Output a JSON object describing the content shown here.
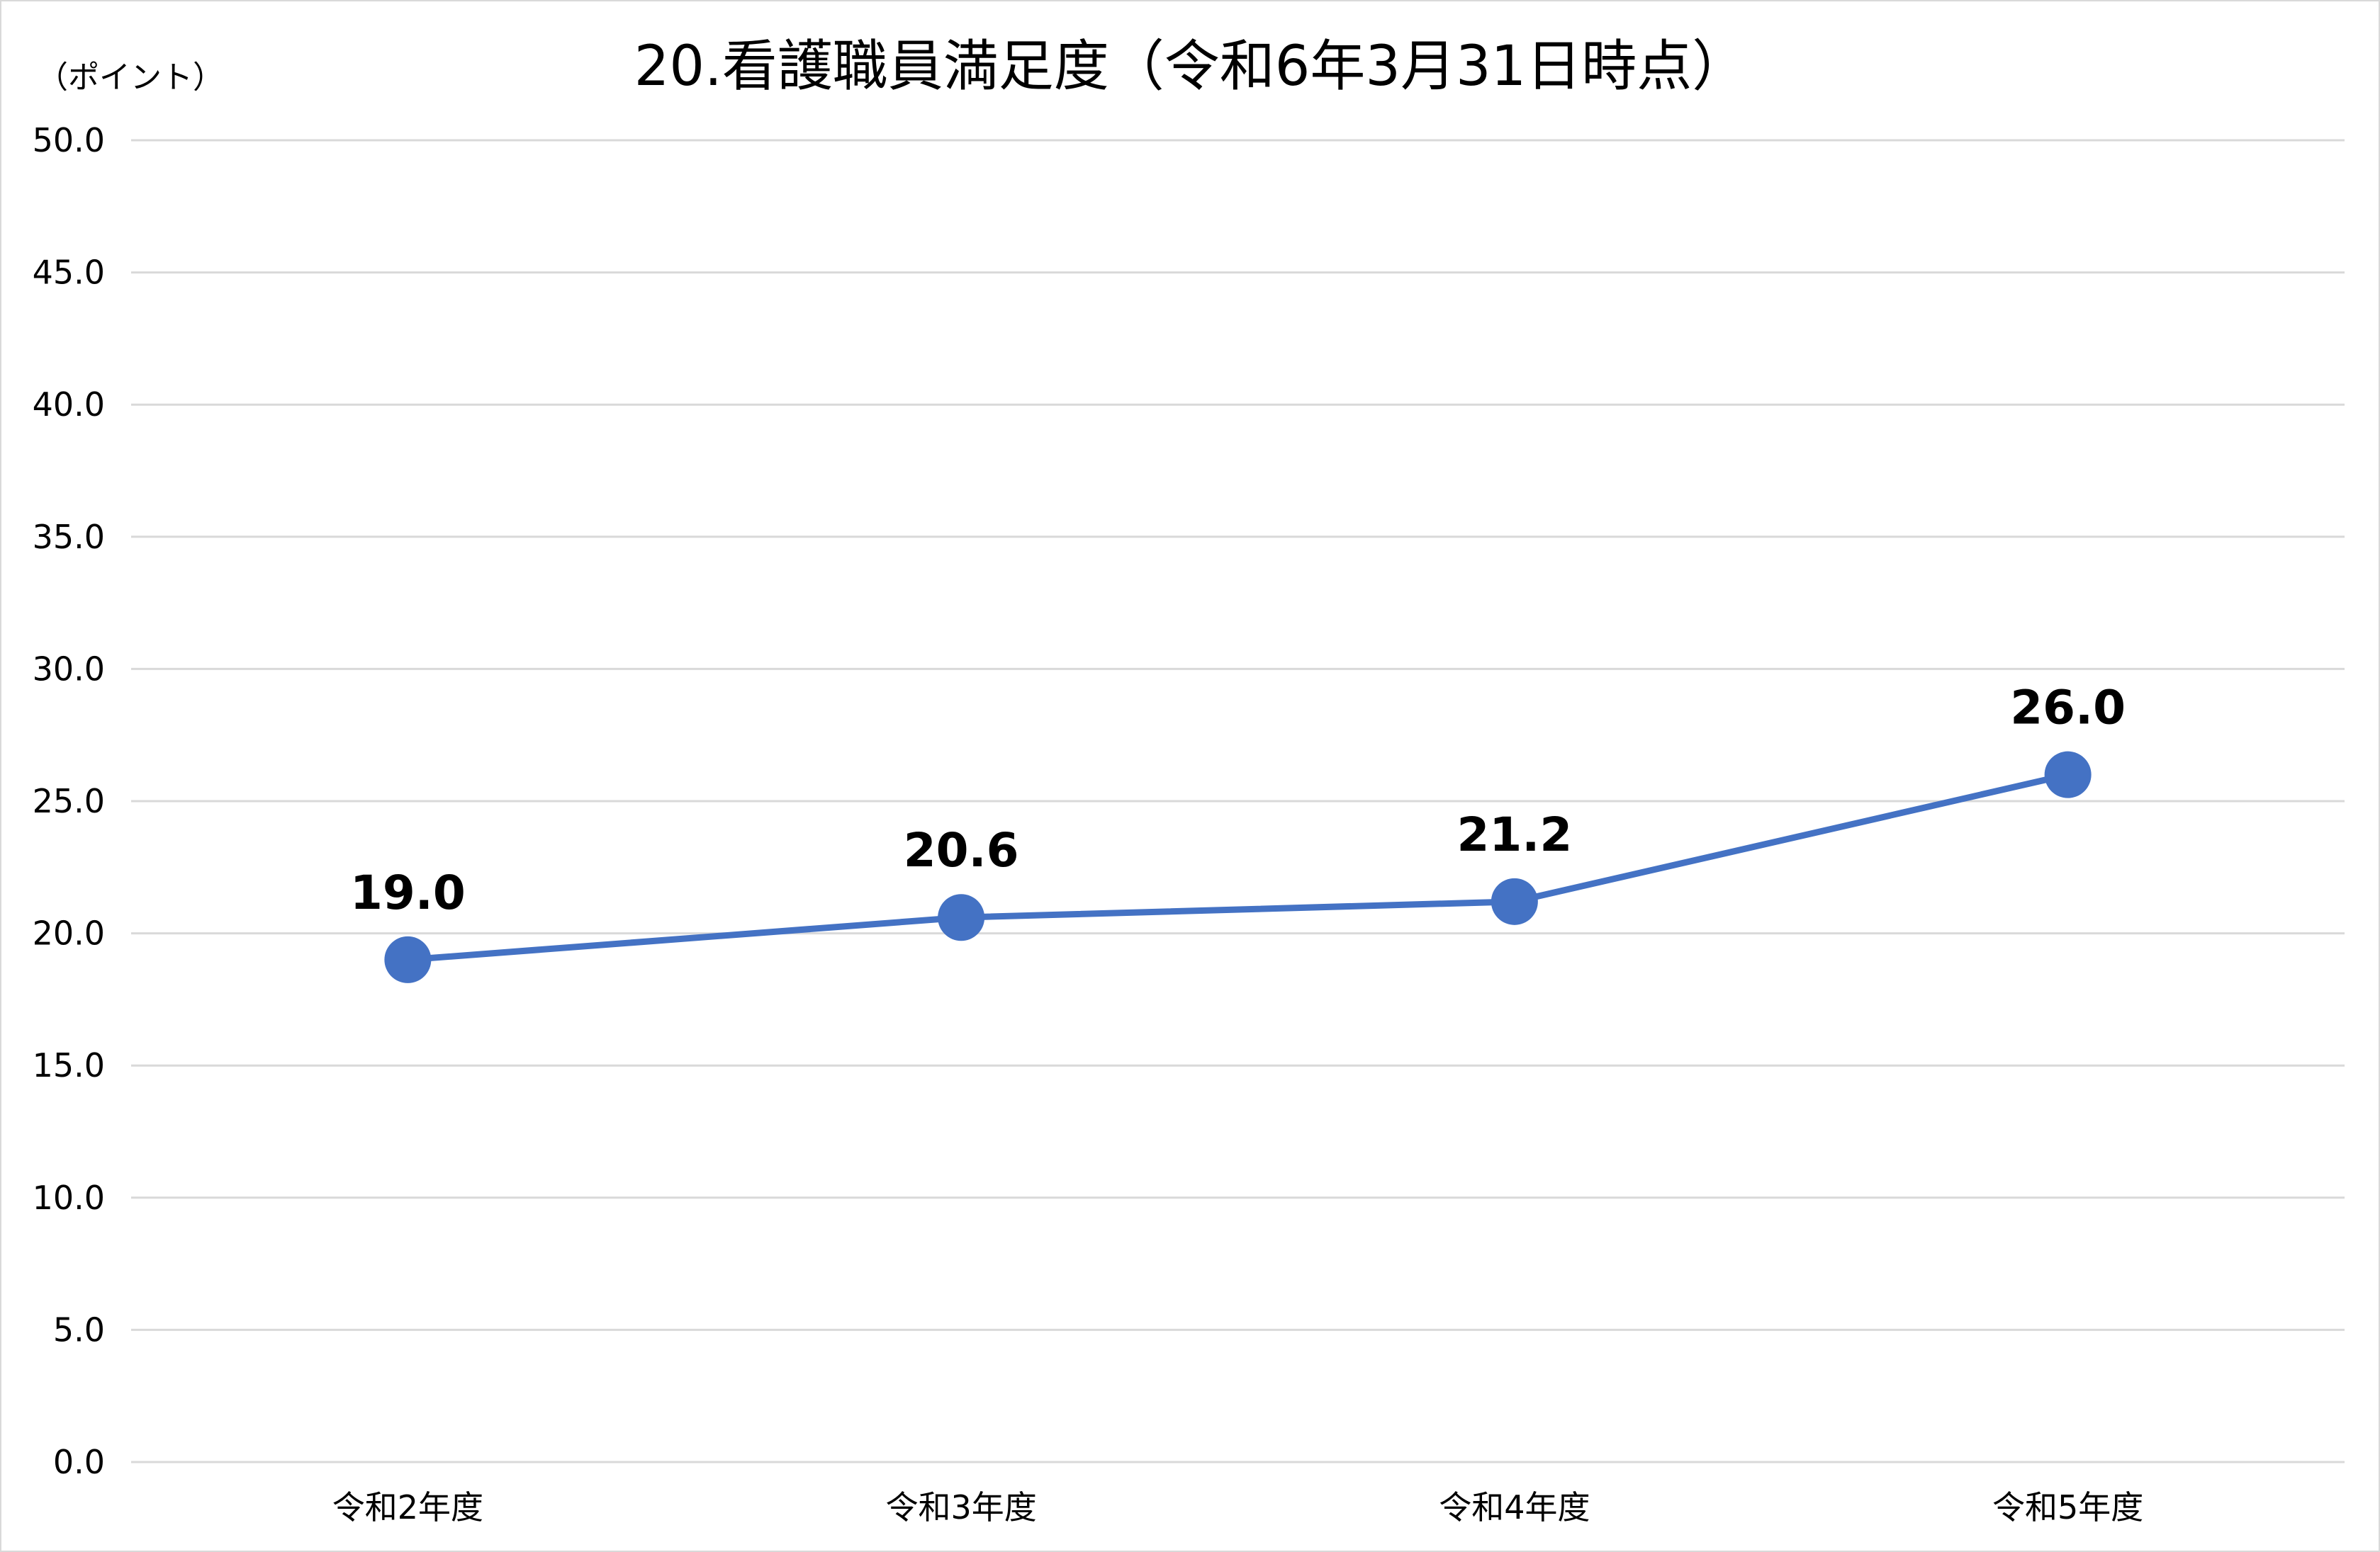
{
  "chart_data": {
    "type": "line",
    "title": "20.看護職員満足度（令和6年3月31日時点）",
    "ylabel": "（ポイント）",
    "xlabel": "",
    "categories": [
      "令和2年度",
      "令和3年度",
      "令和4年度",
      "令和5年度"
    ],
    "series": [
      {
        "values": [
          19.0,
          20.6,
          21.2,
          26.0
        ]
      }
    ],
    "data_labels": [
      "19.0",
      "20.6",
      "21.2",
      "26.0"
    ],
    "ylim": [
      0,
      50
    ],
    "ytick_step": 5,
    "ytick_labels": [
      "0.0",
      "5.0",
      "10.0",
      "15.0",
      "20.0",
      "25.0",
      "30.0",
      "35.0",
      "40.0",
      "45.0",
      "50.0"
    ],
    "grid": true,
    "legend": "none",
    "line_color": "#4472c4",
    "marker_color": "#4472c4",
    "gridline_color": "#d9d9d9"
  }
}
